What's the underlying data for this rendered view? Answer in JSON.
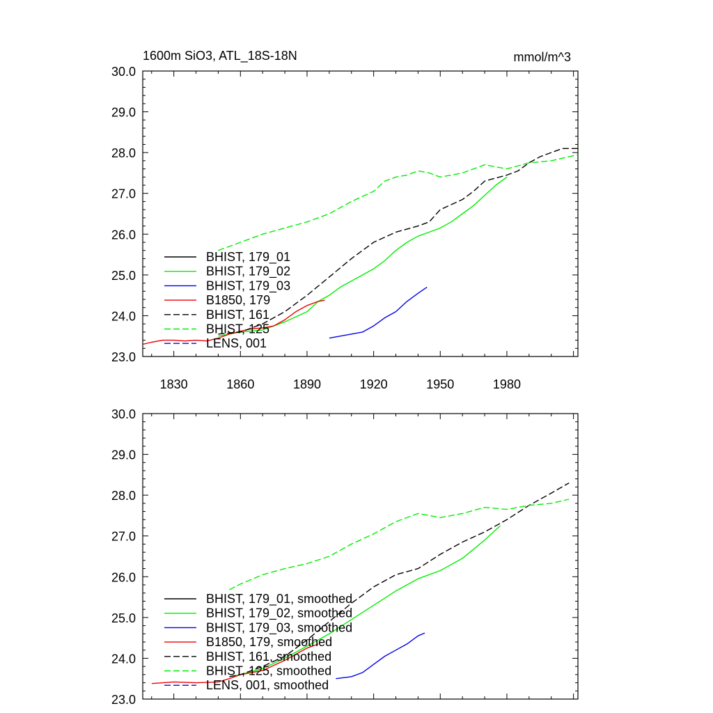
{
  "chart_data": [
    {
      "type": "line",
      "title": "1600m SiO3, ATL_18S-18N",
      "units": "mmol/m^3",
      "xlim": [
        1816,
        2012
      ],
      "ylim": [
        23.0,
        30.0
      ],
      "xticks": [
        1830,
        1860,
        1890,
        1920,
        1950,
        1980
      ],
      "yticks": [
        "23.0",
        "24.0",
        "25.0",
        "26.0",
        "27.0",
        "28.0",
        "29.0",
        "30.0"
      ],
      "series": [
        {
          "name": "BHIST, 179_01",
          "color": "#000000",
          "dash": "solid",
          "x": [],
          "y": []
        },
        {
          "name": "BHIST, 179_02",
          "color": "#00ee00",
          "dash": "solid",
          "x": [
            1850,
            1860,
            1870,
            1880,
            1890,
            1895,
            1900,
            1905,
            1910,
            1915,
            1920,
            1925,
            1930,
            1935,
            1940,
            1945,
            1950,
            1955,
            1960,
            1965,
            1970,
            1975,
            1980
          ],
          "y": [
            23.5,
            23.6,
            23.65,
            23.85,
            24.1,
            24.35,
            24.5,
            24.7,
            24.85,
            25.0,
            25.15,
            25.35,
            25.6,
            25.8,
            25.95,
            26.05,
            26.15,
            26.3,
            26.5,
            26.7,
            26.95,
            27.2,
            27.4
          ]
        },
        {
          "name": "BHIST, 179_03",
          "color": "#0000ee",
          "dash": "solid",
          "x": [
            1900,
            1905,
            1910,
            1915,
            1920,
            1925,
            1930,
            1935,
            1940,
            1944
          ],
          "y": [
            23.45,
            23.5,
            23.55,
            23.6,
            23.75,
            23.95,
            24.1,
            24.35,
            24.55,
            24.7
          ]
        },
        {
          "name": "B1850, 179",
          "color": "#ee0000",
          "dash": "solid",
          "x": [
            1816,
            1820,
            1825,
            1830,
            1835,
            1840,
            1845,
            1850,
            1855,
            1860,
            1865,
            1870,
            1875,
            1880,
            1885,
            1890,
            1895,
            1898
          ],
          "y": [
            23.3,
            23.35,
            23.4,
            23.4,
            23.38,
            23.4,
            23.38,
            23.45,
            23.55,
            23.62,
            23.68,
            23.7,
            23.75,
            23.9,
            24.1,
            24.25,
            24.35,
            24.38
          ]
        },
        {
          "name": "BHIST, 161",
          "color": "#000000",
          "dash": "dashed",
          "x": [
            1850,
            1860,
            1870,
            1880,
            1890,
            1900,
            1910,
            1920,
            1930,
            1940,
            1945,
            1950,
            1960,
            1965,
            1970,
            1980,
            1985,
            1990,
            1995,
            2000,
            2005,
            2012
          ],
          "y": [
            23.55,
            23.6,
            23.8,
            24.1,
            24.5,
            24.95,
            25.4,
            25.8,
            26.05,
            26.2,
            26.3,
            26.6,
            26.85,
            27.05,
            27.3,
            27.45,
            27.55,
            27.75,
            27.9,
            28.0,
            28.1,
            28.1
          ]
        },
        {
          "name": "BHIST, 125",
          "color": "#00ee00",
          "dash": "dashed",
          "x": [
            1850,
            1860,
            1870,
            1880,
            1890,
            1900,
            1910,
            1920,
            1925,
            1930,
            1935,
            1940,
            1945,
            1950,
            1960,
            1970,
            1980,
            1990,
            2000,
            2012
          ],
          "y": [
            25.6,
            25.8,
            26.0,
            26.15,
            26.3,
            26.5,
            26.8,
            27.05,
            27.3,
            27.4,
            27.45,
            27.55,
            27.5,
            27.4,
            27.5,
            27.7,
            27.6,
            27.75,
            27.8,
            27.95
          ]
        },
        {
          "name": "LENS, 001",
          "color": "#0000ee",
          "dash": "dashed",
          "x": [],
          "y": []
        }
      ]
    },
    {
      "type": "line",
      "title": "",
      "units": "",
      "xlim": [
        1816,
        2012
      ],
      "ylim": [
        23.0,
        30.0
      ],
      "xticks": [],
      "yticks": [
        "23.0",
        "24.0",
        "25.0",
        "26.0",
        "27.0",
        "28.0",
        "29.0",
        "30.0"
      ],
      "series": [
        {
          "name": "BHIST, 179_01, smoothed",
          "color": "#000000",
          "dash": "solid",
          "x": [],
          "y": []
        },
        {
          "name": "BHIST, 179_02, smoothed",
          "color": "#00ee00",
          "dash": "solid",
          "x": [
            1855,
            1860,
            1870,
            1880,
            1890,
            1900,
            1910,
            1920,
            1930,
            1940,
            1950,
            1960,
            1970,
            1977
          ],
          "y": [
            23.55,
            23.6,
            23.75,
            24.0,
            24.3,
            24.6,
            24.95,
            25.3,
            25.65,
            25.95,
            26.15,
            26.45,
            26.9,
            27.25
          ]
        },
        {
          "name": "BHIST, 179_03, smoothed",
          "color": "#0000ee",
          "dash": "solid",
          "x": [
            1903,
            1910,
            1915,
            1920,
            1925,
            1930,
            1935,
            1940,
            1943
          ],
          "y": [
            23.5,
            23.55,
            23.65,
            23.85,
            24.05,
            24.2,
            24.35,
            24.55,
            24.62
          ]
        },
        {
          "name": "B1850, 179, smoothed",
          "color": "#ee0000",
          "dash": "solid",
          "x": [
            1820,
            1825,
            1830,
            1840,
            1850,
            1855,
            1860,
            1870,
            1880,
            1890,
            1895
          ],
          "y": [
            23.38,
            23.4,
            23.42,
            23.4,
            23.42,
            23.5,
            23.6,
            23.7,
            23.95,
            24.25,
            24.35
          ]
        },
        {
          "name": "BHIST, 161, smoothed",
          "color": "#000000",
          "dash": "dashed",
          "x": [
            1855,
            1860,
            1870,
            1880,
            1890,
            1900,
            1910,
            1920,
            1930,
            1940,
            1950,
            1960,
            1970,
            1980,
            1990,
            2000,
            2008
          ],
          "y": [
            23.55,
            23.6,
            23.8,
            24.05,
            24.45,
            24.9,
            25.35,
            25.75,
            26.05,
            26.2,
            26.55,
            26.85,
            27.1,
            27.4,
            27.75,
            28.05,
            28.3
          ]
        },
        {
          "name": "BHIST, 125, smoothed",
          "color": "#00ee00",
          "dash": "dashed",
          "x": [
            1855,
            1860,
            1870,
            1880,
            1890,
            1900,
            1910,
            1920,
            1930,
            1940,
            1945,
            1950,
            1960,
            1970,
            1980,
            1990,
            2000,
            2008
          ],
          "y": [
            25.68,
            25.82,
            26.05,
            26.2,
            26.32,
            26.5,
            26.8,
            27.05,
            27.35,
            27.55,
            27.5,
            27.45,
            27.55,
            27.7,
            27.65,
            27.75,
            27.8,
            27.9
          ]
        },
        {
          "name": "LENS, 001, smoothed",
          "color": "#0000ee",
          "dash": "dashed",
          "x": [],
          "y": []
        }
      ]
    }
  ]
}
